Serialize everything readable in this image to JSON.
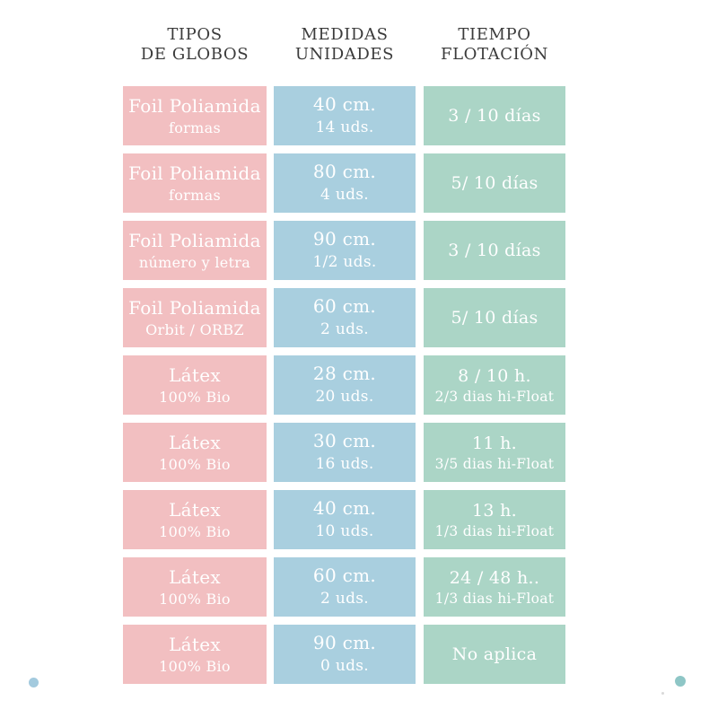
{
  "colors": {
    "pink": "#f2bfc1",
    "blue": "#a9cfdf",
    "green": "#abd5c6",
    "header_text": "#3b3b3b",
    "cell_text": "#ffffff",
    "dot_left": "#a3cade",
    "dot_right": "#8ec6c6",
    "dot_tiny": "#d8d8d8"
  },
  "chart_data": {
    "type": "table",
    "columns": [
      {
        "id": "tipos",
        "line1": "TIPOS",
        "line2": "DE GLOBOS"
      },
      {
        "id": "medidas",
        "line1": "MEDIDAS",
        "line2": "UNIDADES"
      },
      {
        "id": "tiempo",
        "line1": "TIEMPO",
        "line2": "FLOTACIÓN"
      }
    ],
    "rows": [
      {
        "tipo": [
          "Foil Poliamida",
          "formas"
        ],
        "medidas": [
          "40 cm.",
          "14 uds."
        ],
        "tiempo": [
          "3 / 10 días"
        ]
      },
      {
        "tipo": [
          "Foil Poliamida",
          "formas"
        ],
        "medidas": [
          "80 cm.",
          "4 uds."
        ],
        "tiempo": [
          "5/ 10 días"
        ]
      },
      {
        "tipo": [
          "Foil Poliamida",
          "número y letra"
        ],
        "medidas": [
          "90 cm.",
          "1/2 uds."
        ],
        "tiempo": [
          "3 / 10 días"
        ]
      },
      {
        "tipo": [
          "Foil Poliamida",
          "Orbit / ORBZ"
        ],
        "medidas": [
          "60 cm.",
          "2 uds."
        ],
        "tiempo": [
          "5/ 10 días"
        ]
      },
      {
        "tipo": [
          "Látex",
          "100% Bio"
        ],
        "medidas": [
          "28 cm.",
          "20 uds."
        ],
        "tiempo": [
          "8 / 10 h.",
          "2/3 dias hi-Float"
        ]
      },
      {
        "tipo": [
          "Látex",
          "100% Bio"
        ],
        "medidas": [
          "30 cm.",
          "16 uds."
        ],
        "tiempo": [
          "11 h.",
          "3/5 dias hi-Float"
        ]
      },
      {
        "tipo": [
          "Látex",
          "100% Bio"
        ],
        "medidas": [
          "40 cm.",
          "10 uds."
        ],
        "tiempo": [
          "13 h.",
          "1/3 dias hi-Float"
        ]
      },
      {
        "tipo": [
          "Látex",
          "100% Bio"
        ],
        "medidas": [
          "60 cm.",
          "2 uds."
        ],
        "tiempo": [
          "24 / 48 h..",
          "1/3 dias hi-Float"
        ]
      },
      {
        "tipo": [
          "Látex",
          "100% Bio"
        ],
        "medidas": [
          "90 cm.",
          "0 uds."
        ],
        "tiempo": [
          "No aplica"
        ]
      }
    ]
  }
}
